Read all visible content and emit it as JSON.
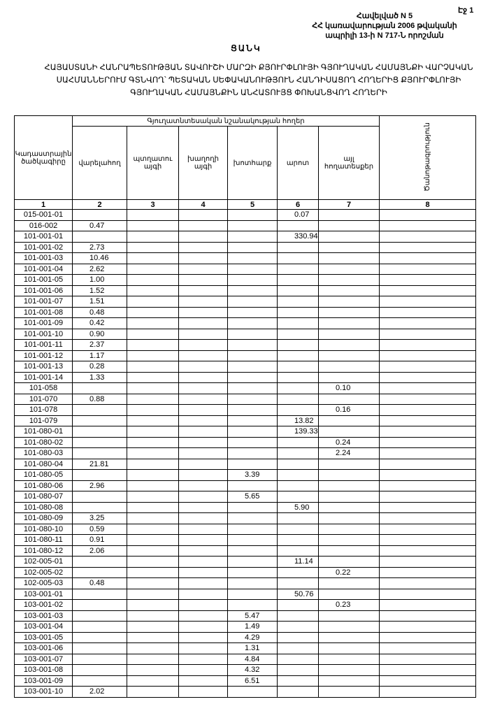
{
  "page_label": "Էջ 1",
  "annex": {
    "line1": "Հավելված N 5",
    "line2": "ՀՀ կառավարության 2006 թվականի",
    "line3": "ապրիլի 13-ի N 717-Ն որոշման"
  },
  "list_title": "ՑԱՆԿ",
  "title": "ՀԱՅԱՍՏԱՆԻ ՀԱՆՐԱՊԵՏՈՒԹՅԱՆ ՏԱՎՈՒՇԻ ՄԱՐԶԻ ՔՅՈՒՐՓԼՈՒՅԻ ԳՅՈՒՂԱԿԱՆ ՀԱՄԱՅՆՔԻ ՎԱՐՉԱԿԱՆ ՍԱՀՄԱՆՆԵՐՈՒՄ ԳՏՆՎՈՂ՝ ՊԵՏԱԿԱՆ ՍԵՓԱԿԱՆՈՒԹՅՈՒՆ ՀԱՆԴԻՍԱՑՈՂ ՀՈՂԵՐԻՑ ՔՅՈՒՐՓԼՈՒՅԻ ԳՅՈՒՂԱԿԱՆ ՀԱՄԱՅՆՔԻՆ ԱՆՀԱՏՈՒՅՑ ՓՈԽԱՆՑՎՈՂ ՀՈՂԵՐԻ",
  "table": {
    "col_code": "Կադաստրային ծածկագիրը",
    "group": "Գյուղատնտեսական նշանակության հողեր",
    "cols": [
      "վարելահող",
      "պտղատու այգի",
      "խաղողի այգի",
      "խոտհարք",
      "արոտ",
      "այլ հողատեսքեր"
    ],
    "col_note": "Ծանոթագրություն",
    "numbers": [
      "1",
      "2",
      "3",
      "4",
      "5",
      "6",
      "7",
      "8"
    ],
    "rows": [
      [
        "015-001-01",
        "",
        "",
        "",
        "",
        "0.07",
        "",
        ""
      ],
      [
        "016-002",
        "0.47",
        "",
        "",
        "",
        "",
        "",
        ""
      ],
      [
        "101-001-01",
        "",
        "",
        "",
        "",
        "330.94",
        "",
        ""
      ],
      [
        "101-001-02",
        "2.73",
        "",
        "",
        "",
        "",
        "",
        ""
      ],
      [
        "101-001-03",
        "10.46",
        "",
        "",
        "",
        "",
        "",
        ""
      ],
      [
        "101-001-04",
        "2.62",
        "",
        "",
        "",
        "",
        "",
        ""
      ],
      [
        "101-001-05",
        "1.00",
        "",
        "",
        "",
        "",
        "",
        ""
      ],
      [
        "101-001-06",
        "1.52",
        "",
        "",
        "",
        "",
        "",
        ""
      ],
      [
        "101-001-07",
        "1.51",
        "",
        "",
        "",
        "",
        "",
        ""
      ],
      [
        "101-001-08",
        "0.48",
        "",
        "",
        "",
        "",
        "",
        ""
      ],
      [
        "101-001-09",
        "0.42",
        "",
        "",
        "",
        "",
        "",
        ""
      ],
      [
        "101-001-10",
        "0.90",
        "",
        "",
        "",
        "",
        "",
        ""
      ],
      [
        "101-001-11",
        "2.37",
        "",
        "",
        "",
        "",
        "",
        ""
      ],
      [
        "101-001-12",
        "1.17",
        "",
        "",
        "",
        "",
        "",
        ""
      ],
      [
        "101-001-13",
        "0.28",
        "",
        "",
        "",
        "",
        "",
        ""
      ],
      [
        "101-001-14",
        "1.33",
        "",
        "",
        "",
        "",
        "",
        ""
      ],
      [
        "101-058",
        "",
        "",
        "",
        "",
        "",
        "0.10",
        ""
      ],
      [
        "101-070",
        "0.88",
        "",
        "",
        "",
        "",
        "",
        ""
      ],
      [
        "101-078",
        "",
        "",
        "",
        "",
        "",
        "0.16",
        ""
      ],
      [
        "101-079",
        "",
        "",
        "",
        "",
        "13.82",
        "",
        ""
      ],
      [
        "101-080-01",
        "",
        "",
        "",
        "",
        "139.33",
        "",
        ""
      ],
      [
        "101-080-02",
        "",
        "",
        "",
        "",
        "",
        "0.24",
        ""
      ],
      [
        "101-080-03",
        "",
        "",
        "",
        "",
        "",
        "2.24",
        ""
      ],
      [
        "101-080-04",
        "21.81",
        "",
        "",
        "",
        "",
        "",
        ""
      ],
      [
        "101-080-05",
        "",
        "",
        "",
        "3.39",
        "",
        "",
        ""
      ],
      [
        "101-080-06",
        "2.96",
        "",
        "",
        "",
        "",
        "",
        ""
      ],
      [
        "101-080-07",
        "",
        "",
        "",
        "5.65",
        "",
        "",
        ""
      ],
      [
        "101-080-08",
        "",
        "",
        "",
        "",
        "5.90",
        "",
        ""
      ],
      [
        "101-080-09",
        "3.25",
        "",
        "",
        "",
        "",
        "",
        ""
      ],
      [
        "101-080-10",
        "0.59",
        "",
        "",
        "",
        "",
        "",
        ""
      ],
      [
        "101-080-11",
        "0.91",
        "",
        "",
        "",
        "",
        "",
        ""
      ],
      [
        "101-080-12",
        "2.06",
        "",
        "",
        "",
        "",
        "",
        ""
      ],
      [
        "102-005-01",
        "",
        "",
        "",
        "",
        "11.14",
        "",
        ""
      ],
      [
        "102-005-02",
        "",
        "",
        "",
        "",
        "",
        "0.22",
        ""
      ],
      [
        "102-005-03",
        "0.48",
        "",
        "",
        "",
        "",
        "",
        ""
      ],
      [
        "103-001-01",
        "",
        "",
        "",
        "",
        "50.76",
        "",
        ""
      ],
      [
        "103-001-02",
        "",
        "",
        "",
        "",
        "",
        "0.23",
        ""
      ],
      [
        "103-001-03",
        "",
        "",
        "",
        "5.47",
        "",
        "",
        ""
      ],
      [
        "103-001-04",
        "",
        "",
        "",
        "1.49",
        "",
        "",
        ""
      ],
      [
        "103-001-05",
        "",
        "",
        "",
        "4.29",
        "",
        "",
        ""
      ],
      [
        "103-001-06",
        "",
        "",
        "",
        "1.31",
        "",
        "",
        ""
      ],
      [
        "103-001-07",
        "",
        "",
        "",
        "4.84",
        "",
        "",
        ""
      ],
      [
        "103-001-08",
        "",
        "",
        "",
        "4.32",
        "",
        "",
        ""
      ],
      [
        "103-001-09",
        "",
        "",
        "",
        "6.51",
        "",
        "",
        ""
      ],
      [
        "103-001-10",
        "2.02",
        "",
        "",
        "",
        "",
        "",
        ""
      ]
    ]
  }
}
